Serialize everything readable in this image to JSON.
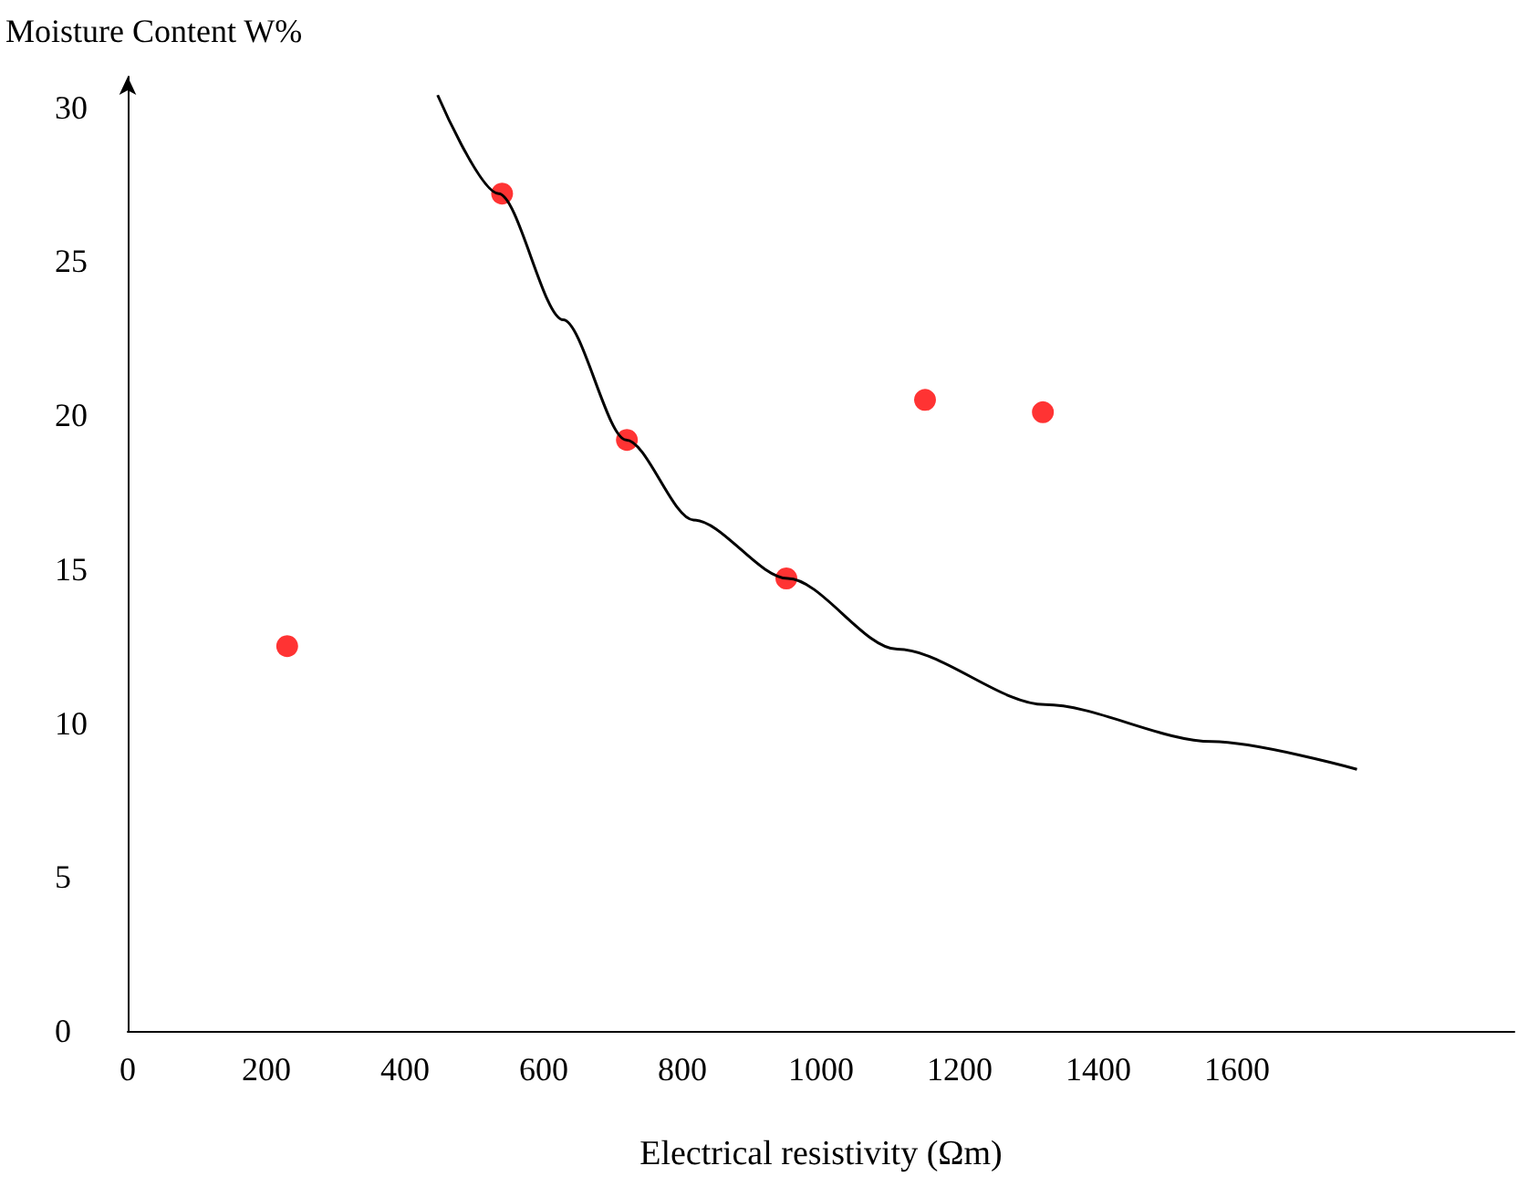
{
  "chart_data": {
    "type": "scatter",
    "xlabel": "Electrical resistivity (Ωm)",
    "ylabel": "Moisture Content W%",
    "series": [
      {
        "color": "#ff0000",
        "marker": "circle",
        "x": [
          230,
          540,
          720,
          950,
          1150,
          1320
        ],
        "values": [
          12.5,
          27.2,
          19.2,
          14.7,
          20.5,
          20.1
        ]
      },
      {
        "type": "line",
        "color": "#000000",
        "marker": "none",
        "x": [
          447,
          535,
          628,
          719,
          816,
          952,
          1110,
          1323,
          1564,
          1773
        ],
        "values": [
          30.4,
          27.2,
          23.1,
          19.2,
          16.6,
          14.7,
          12.4,
          10.6,
          9.4,
          8.5
        ]
      }
    ],
    "xlim": [
      0,
      2000
    ],
    "xticks": [
      0,
      200,
      400,
      600,
      800,
      1000,
      1200,
      1400,
      1600
    ],
    "ylim": [
      0,
      31
    ],
    "yticks": [
      0,
      5,
      10,
      15,
      20,
      25,
      30
    ],
    "grid": false
  }
}
